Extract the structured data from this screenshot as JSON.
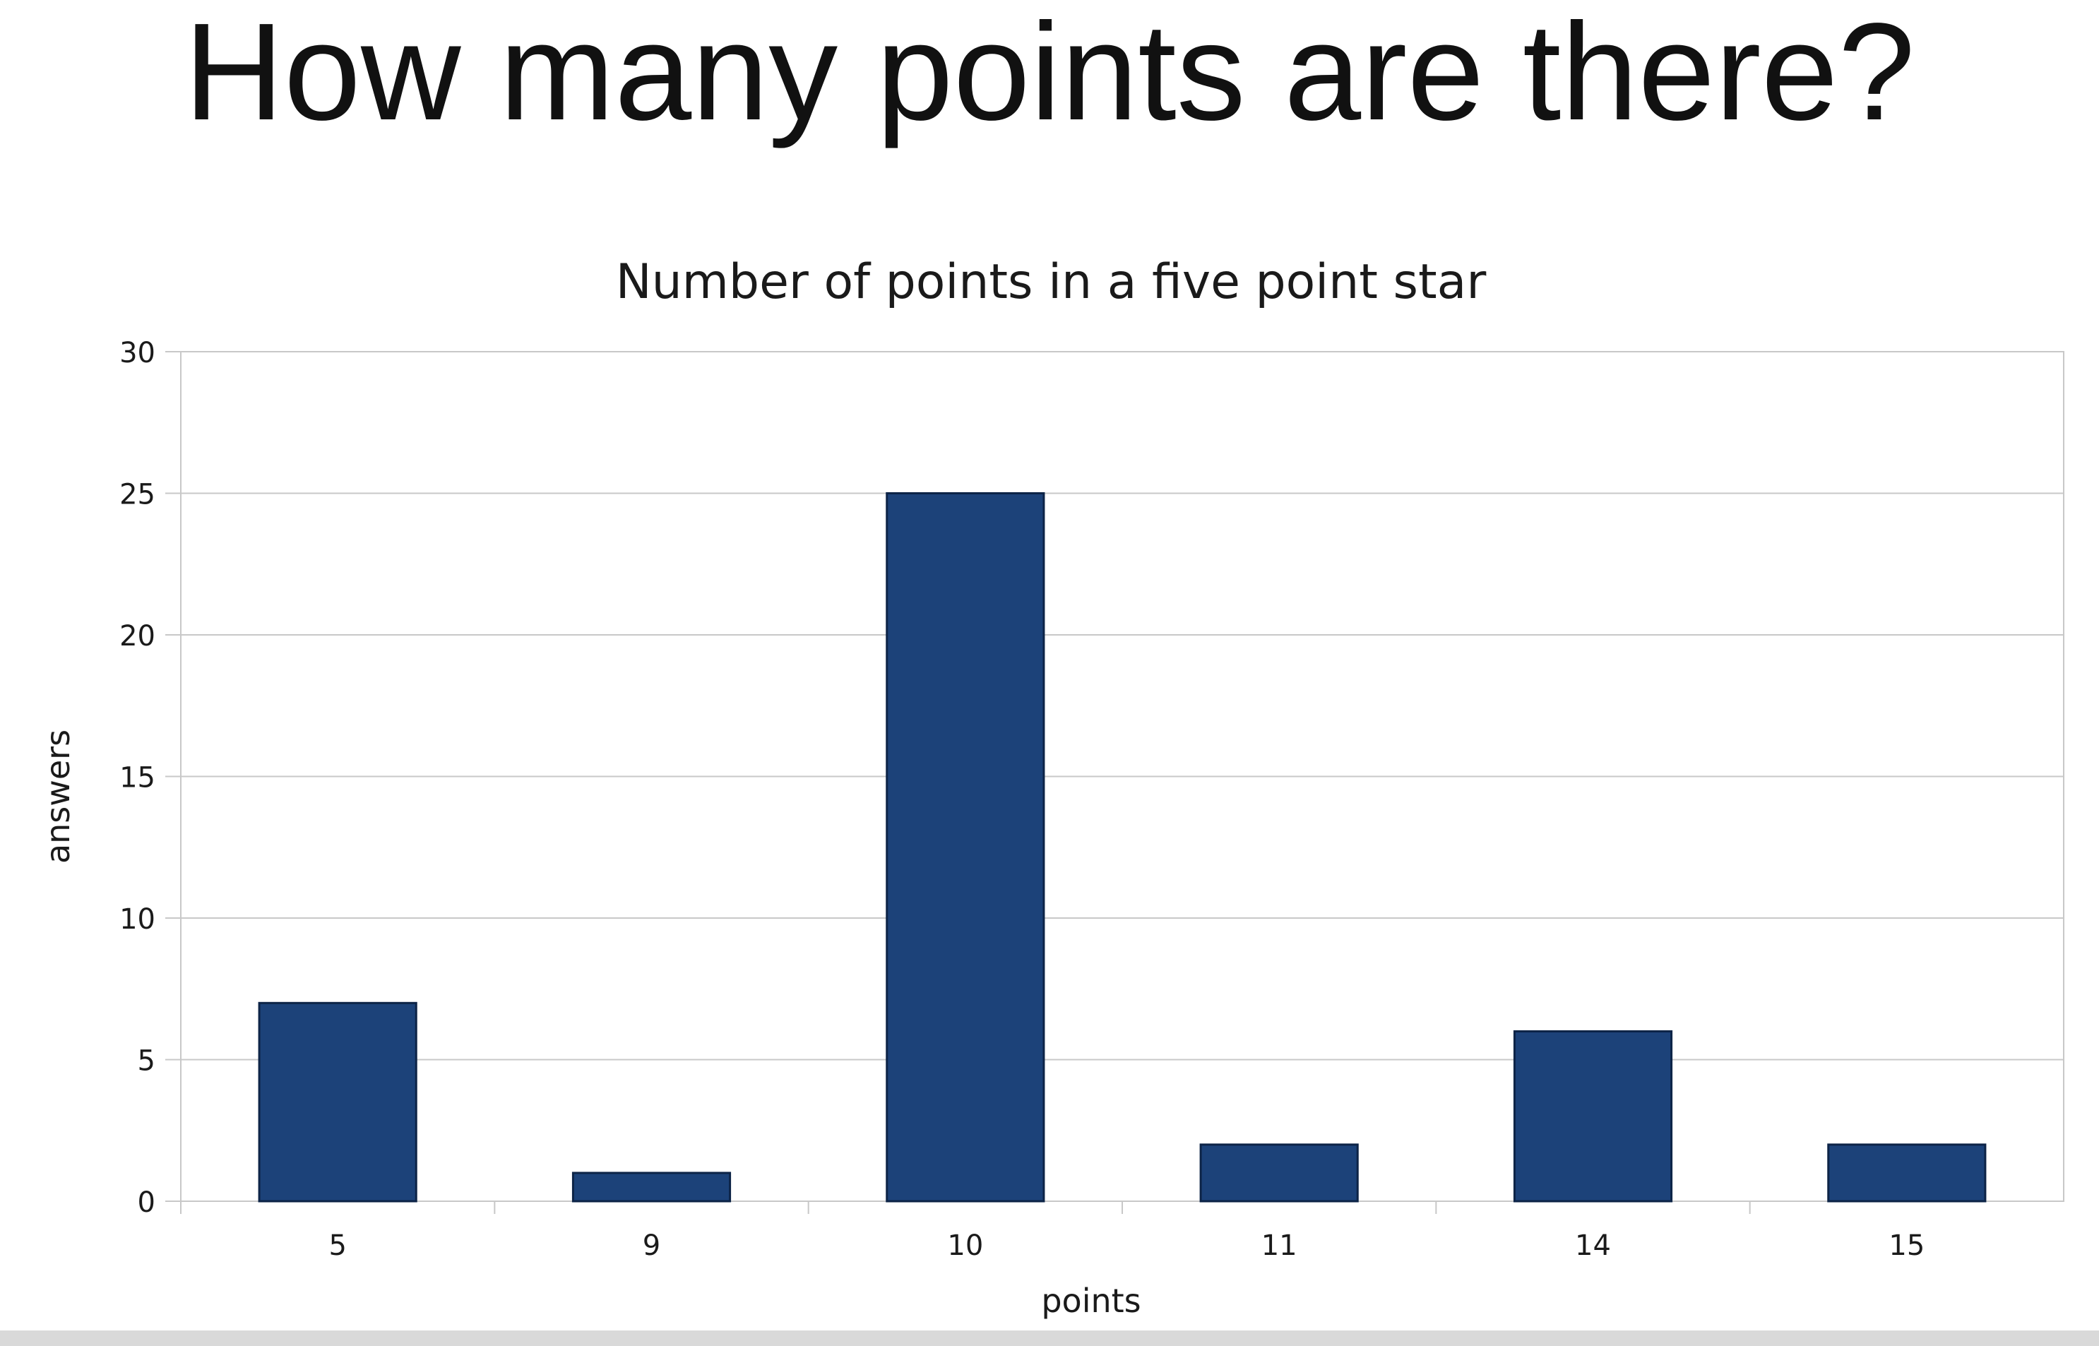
{
  "slide": {
    "title": "How many points are there?"
  },
  "colors": {
    "bar_fill": "#1c4279",
    "bar_stroke": "#0d2447",
    "grid": "#c8c8c8",
    "text": "#1a1a1a"
  },
  "chart_data": {
    "type": "bar",
    "title": "Number of points in a five point star",
    "xlabel": "points",
    "ylabel": "answers",
    "categories": [
      "5",
      "9",
      "10",
      "11",
      "14",
      "15"
    ],
    "values": [
      7,
      1,
      25,
      2,
      6,
      2
    ],
    "ylim": [
      0,
      30
    ],
    "yticks": [
      0,
      5,
      10,
      15,
      20,
      25,
      30
    ],
    "grid": true,
    "legend": "none"
  }
}
